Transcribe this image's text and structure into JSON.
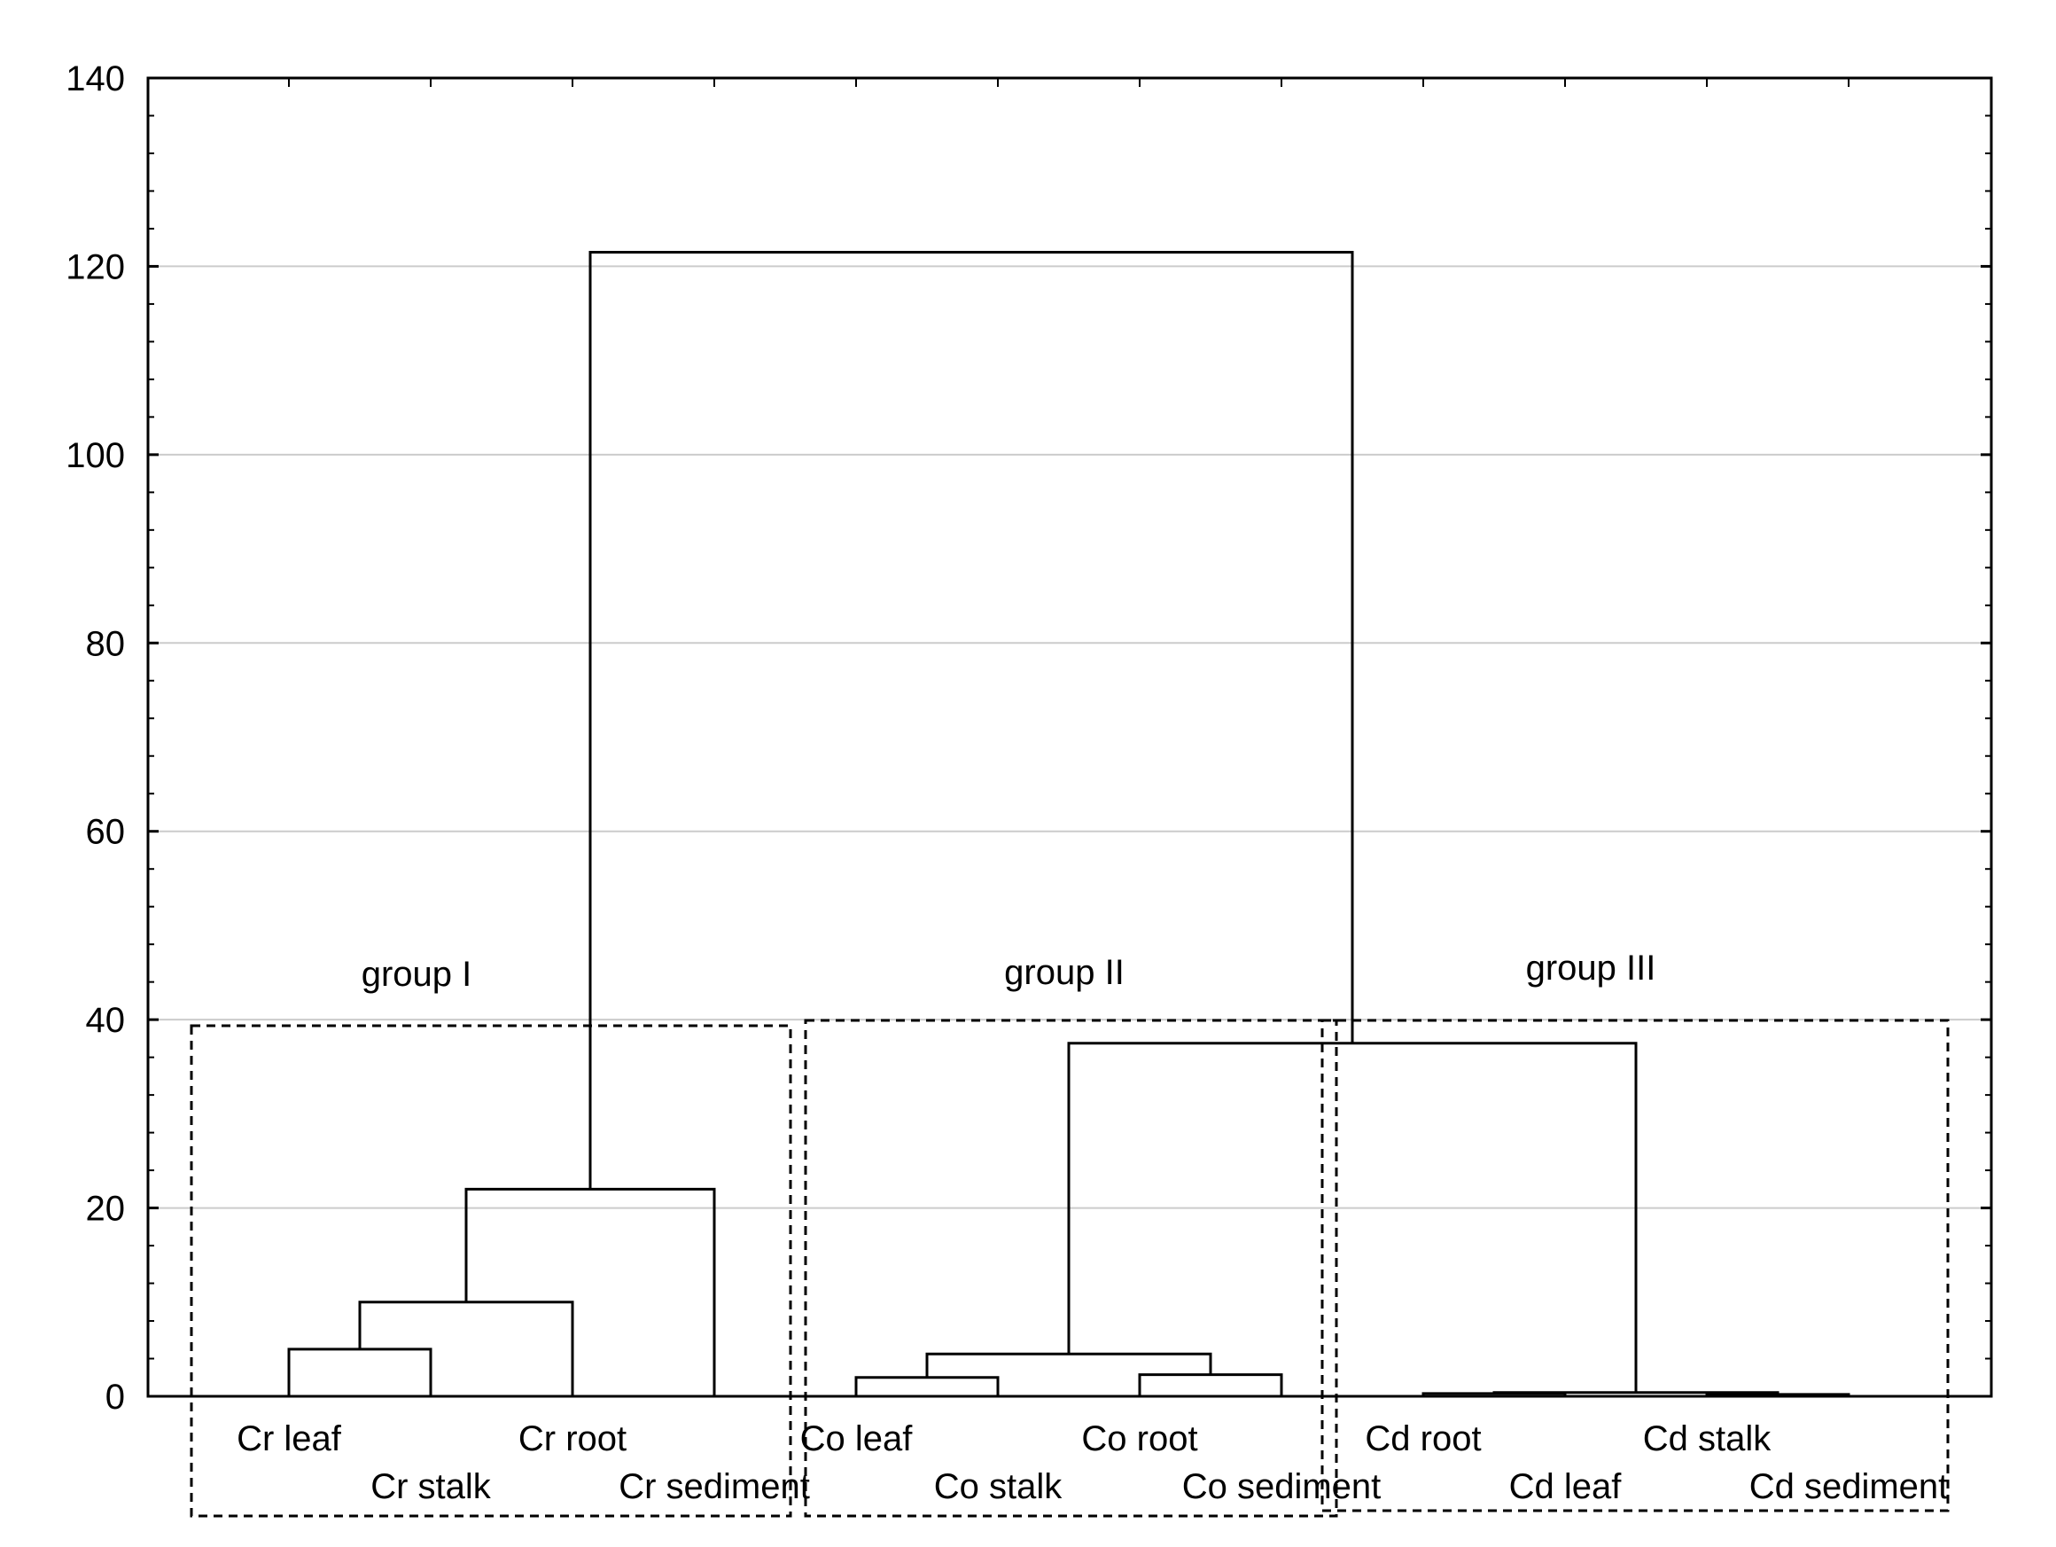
{
  "chart_data": {
    "type": "dendrogram",
    "title": "",
    "xlabel": "",
    "ylabel": "",
    "ylim": [
      0,
      140
    ],
    "yticks": [
      0,
      20,
      40,
      60,
      80,
      100,
      120,
      140
    ],
    "grid": true,
    "leaves": [
      "Cr leaf",
      "Cr stalk",
      "Cr root",
      "Cr sediment",
      "Co leaf",
      "Co stalk",
      "Co root",
      "Co sediment",
      "Cd root",
      "Cd leaf",
      "Cd stalk",
      "Cd sediment"
    ],
    "merges": [
      {
        "left": "Cr leaf",
        "right": "Cr stalk",
        "height": 5
      },
      {
        "left": "Cr leaf+Cr stalk",
        "right": "Cr root",
        "height": 10
      },
      {
        "left": "Cr leaf+Cr stalk+Cr root",
        "right": "Cr sediment",
        "height": 22
      },
      {
        "left": "Co leaf",
        "right": "Co stalk",
        "height": 2
      },
      {
        "left": "Co root",
        "right": "Co sediment",
        "height": 2.3
      },
      {
        "left": "Co leaf+Co stalk",
        "right": "Co root+Co sediment",
        "height": 4.5
      },
      {
        "left": "Cd root",
        "right": "Cd leaf",
        "height": 0.3
      },
      {
        "left": "Cd stalk",
        "right": "Cd sediment",
        "height": 0.2
      },
      {
        "left": "Cd root+Cd leaf",
        "right": "Cd stalk+Cd sediment",
        "height": 0.4
      },
      {
        "left": "Co cluster",
        "right": "Cd cluster",
        "height": 37.5
      },
      {
        "left": "Cr cluster",
        "right": "Co+Cd cluster",
        "height": 121.5
      }
    ],
    "groups": [
      {
        "label": "group I",
        "members": [
          "Cr leaf",
          "Cr stalk",
          "Cr root",
          "Cr sediment"
        ]
      },
      {
        "label": "group II",
        "members": [
          "Co leaf",
          "Co stalk",
          "Co root",
          "Co sediment"
        ]
      },
      {
        "label": "group III",
        "members": [
          "Cd root",
          "Cd leaf",
          "Cd stalk",
          "Cd sediment"
        ]
      }
    ]
  }
}
